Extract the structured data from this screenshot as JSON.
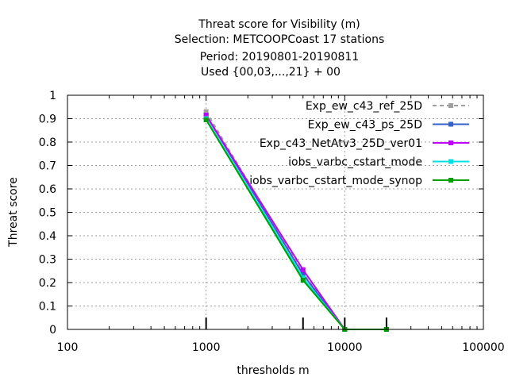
{
  "chart_data": {
    "type": "line",
    "title_lines": [
      "Threat score  for Visibility (m)",
      "Selection: METCOOPCoast     17 stations",
      "Period: 20190801-20190811",
      "Used {00,03,...,21} + 00"
    ],
    "xlabel": "thresholds m",
    "ylabel": "Threat score",
    "x_scale": "log",
    "xlim": [
      100,
      100000
    ],
    "ylim": [
      0,
      1
    ],
    "x_ticks": [
      100,
      1000,
      10000,
      100000
    ],
    "x_tick_labels": [
      "100",
      "1000",
      "10000",
      "100000"
    ],
    "y_ticks": [
      0,
      0.1,
      0.2,
      0.3,
      0.4,
      0.5,
      0.6,
      0.7,
      0.8,
      0.9,
      1
    ],
    "y_tick_labels": [
      "0",
      "0.1",
      "0.2",
      "0.3",
      "0.4",
      "0.5",
      "0.6",
      "0.7",
      "0.8",
      "0.9",
      "1"
    ],
    "grid": true,
    "legend_position": "top-right",
    "threshold_markers": [
      1000,
      5000,
      10000,
      20000
    ],
    "series": [
      {
        "name": "Exp_ew_c43_ref_25D",
        "color": "#a0a0a0",
        "dashed": true,
        "x": [
          1000,
          5000,
          10000,
          20000
        ],
        "y": [
          0.93,
          0.24,
          0.0,
          0.0
        ]
      },
      {
        "name": "Exp_ew_c43_ps_25D",
        "color": "#3060c8",
        "dashed": false,
        "x": [
          1000,
          5000,
          10000,
          20000
        ],
        "y": [
          0.915,
          0.235,
          0.0,
          0.0
        ]
      },
      {
        "name": "Exp_c43_NetAtv3_25D_ver01",
        "color": "#c000ff",
        "dashed": false,
        "x": [
          1000,
          5000,
          10000,
          20000
        ],
        "y": [
          0.915,
          0.255,
          0.0,
          0.0
        ]
      },
      {
        "name": "iobs_varbc_cstart_mode",
        "color": "#00e0e0",
        "dashed": false,
        "x": [
          1000,
          5000,
          10000,
          20000
        ],
        "y": [
          0.9,
          0.22,
          0.0,
          0.0
        ]
      },
      {
        "name": "iobs_varbc_cstart_mode_synop",
        "color": "#00a000",
        "dashed": false,
        "x": [
          1000,
          5000,
          10000,
          20000
        ],
        "y": [
          0.895,
          0.21,
          0.0,
          0.0
        ]
      }
    ]
  }
}
